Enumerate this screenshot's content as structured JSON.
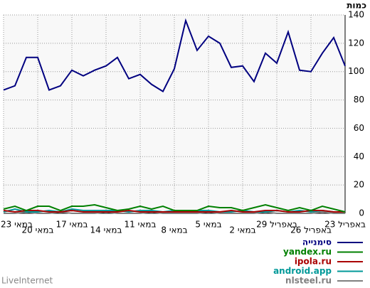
{
  "chart_data": {
    "type": "line",
    "ylabel": "כמות",
    "footer": "LiveInternet",
    "categories": [
      "23 במאי",
      null,
      null,
      "20 במאי",
      null,
      null,
      "17 במאי",
      null,
      null,
      "14 במאי",
      null,
      null,
      "11 במאי",
      null,
      null,
      "8 במאי",
      null,
      null,
      "5 במאי",
      null,
      null,
      "2 במאי",
      null,
      null,
      "29 באפריל",
      null,
      null,
      "26 באפריל",
      null,
      null,
      "23 באפריל"
    ],
    "series": [
      {
        "name": "סימנייה",
        "color": "#000080",
        "values": [
          87,
          90,
          110,
          110,
          87,
          90,
          101,
          97,
          101,
          104,
          110,
          95,
          98,
          91,
          86,
          102,
          136,
          115,
          125,
          120,
          103,
          104,
          93,
          113,
          106,
          128,
          101,
          100,
          113,
          124,
          104
        ]
      },
      {
        "name": "yandex.ru",
        "color": "#008000",
        "values": [
          3,
          5,
          2,
          5,
          5,
          2,
          5,
          5,
          6,
          4,
          2,
          3,
          5,
          3,
          5,
          2,
          2,
          2,
          5,
          4,
          4,
          2,
          4,
          6,
          4,
          2,
          4,
          2,
          5,
          3,
          1
        ]
      },
      {
        "name": "ipola.ru",
        "color": "#aa0000",
        "values": [
          2,
          1,
          2,
          2,
          1,
          1,
          2,
          1,
          1,
          1,
          1,
          2,
          1,
          1,
          1,
          1,
          1,
          1,
          1,
          1,
          2,
          1,
          1,
          2,
          2,
          1,
          1,
          2,
          2,
          1,
          1
        ]
      },
      {
        "name": "android.app",
        "color": "#009999",
        "values": [
          1,
          3,
          1,
          1,
          2,
          1,
          3,
          2,
          2,
          2,
          2,
          1,
          2,
          2,
          1,
          2,
          1,
          2,
          2,
          1,
          1,
          2,
          1,
          1,
          2,
          1,
          2,
          1,
          2,
          1,
          1
        ]
      },
      {
        "name": "nlsteel.ru",
        "color": "#808080",
        "values": [
          0,
          0,
          1,
          0,
          0,
          1,
          0,
          0,
          0,
          1,
          0,
          0,
          0,
          1,
          0,
          0,
          0,
          0,
          1,
          0,
          0,
          0,
          0,
          1,
          0,
          0,
          0,
          0,
          1,
          0,
          0
        ]
      }
    ],
    "ylim": [
      0,
      140
    ],
    "yticks": [
      0,
      20,
      40,
      60,
      80,
      100,
      120,
      140
    ],
    "grid": true
  }
}
